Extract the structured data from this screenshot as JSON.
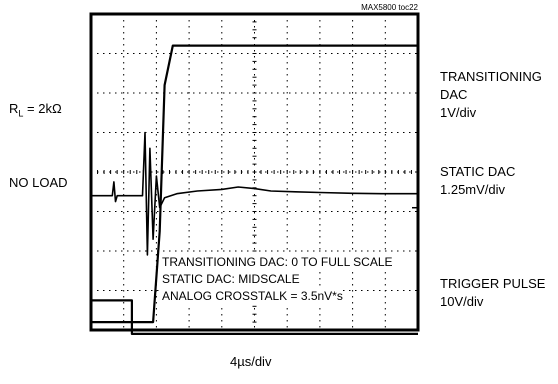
{
  "figure_id": "MAX5800 toc22",
  "left_labels": {
    "loaded_prefix": "R",
    "loaded_sub": "L",
    "loaded_suffix": " = 2kΩ",
    "no_load": "NO LOAD"
  },
  "right_labels": {
    "transitioning": [
      "TRANSITIONING",
      "DAC",
      "1V/div"
    ],
    "static": [
      "STATIC DAC",
      "1.25mV/div"
    ],
    "trigger": [
      "TRIGGER PULSE",
      "10V/div"
    ]
  },
  "annotations": [
    "TRANSITIONING DAC: 0 TO FULL SCALE",
    "STATIC DAC: MIDSCALE",
    "ANALOG CROSSTALK = 3.5nV*s"
  ],
  "xlabel": "4µs/div",
  "chart_data": {
    "type": "line",
    "title": "",
    "grid": true,
    "xlim": [
      0,
      40
    ],
    "ylim": [
      0,
      8
    ],
    "x_units": "µs",
    "y_units": "divisions",
    "series": [
      {
        "name": "TRANSITIONING DAC",
        "x": [
          0,
          6.5,
          7.6,
          8.4,
          9.0,
          10.0,
          40
        ],
        "y": [
          0.2,
          0.2,
          0.2,
          2.5,
          6.2,
          7.2,
          7.2
        ]
      },
      {
        "name": "STATIC DAC",
        "x": [
          0,
          2.6,
          2.8,
          3.0,
          3.2,
          5.0,
          6.3,
          6.6,
          6.9,
          7.2,
          7.6,
          8.0,
          8.4,
          9.0,
          10.5,
          13,
          16,
          18,
          20,
          22,
          25,
          28,
          32,
          36,
          40
        ],
        "y": [
          3.4,
          3.4,
          3.75,
          3.25,
          3.4,
          3.4,
          3.4,
          5.0,
          1.9,
          4.6,
          2.3,
          3.9,
          3.1,
          3.35,
          3.45,
          3.52,
          3.56,
          3.62,
          3.58,
          3.52,
          3.5,
          3.48,
          3.46,
          3.45,
          3.45
        ]
      },
      {
        "name": "TRIGGER PULSE",
        "x": [
          0,
          5.0,
          5.0,
          40
        ],
        "y": [
          0.75,
          0.75,
          -0.1,
          -0.1
        ]
      }
    ]
  }
}
